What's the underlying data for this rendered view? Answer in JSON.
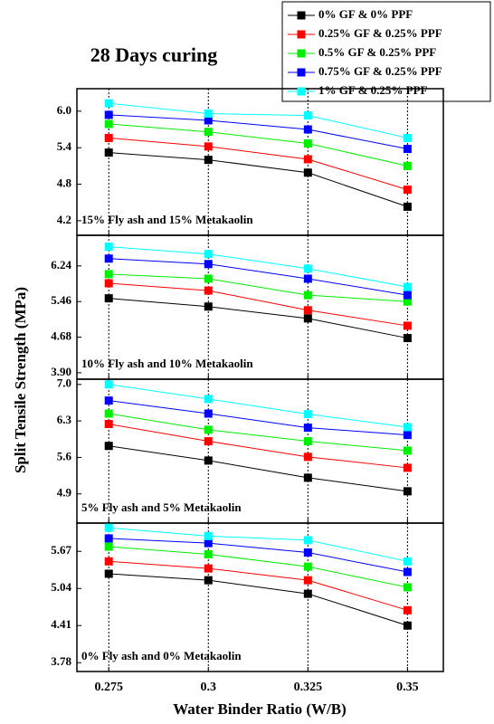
{
  "chart_data": [
    {
      "type": "line",
      "title": "28 Days curing",
      "ylabel": "Split Tensile Strength (MPa)",
      "annotation": "15% Fly ash and 15% Metakaolin",
      "x": [
        0.275,
        0.3,
        0.325,
        0.35
      ],
      "xlim": [
        0.267,
        0.359
      ],
      "xticks": [
        0.275,
        0.3,
        0.325,
        0.35
      ],
      "grid": true,
      "ylim": [
        3.96,
        6.37
      ],
      "yticks": [
        {
          "value": 6,
          "label": "6.0"
        },
        5.4,
        4.8,
        4.2
      ],
      "series": [
        {
          "name": "0% GF & 0% PPF",
          "color": "#000000",
          "values": [
            5.32,
            5.2,
            4.99,
            4.43
          ]
        },
        {
          "name": "0.25% GF & 0.25% PPF",
          "color": "#ff0000",
          "values": [
            5.56,
            5.42,
            5.21,
            4.71
          ]
        },
        {
          "name": "0.5% GF & 0.25% PPF",
          "color": "#00ee00",
          "values": [
            5.79,
            5.66,
            5.47,
            5.1
          ]
        },
        {
          "name": "0.75% GF & 0.25% PPF",
          "color": "#0000ff",
          "values": [
            5.94,
            5.85,
            5.7,
            5.38
          ]
        },
        {
          "name": "1% GF & 0.25% PPF",
          "color": "#00ffff",
          "values": [
            6.13,
            5.96,
            5.93,
            5.56
          ]
        }
      ]
    },
    {
      "type": "line",
      "annotation": "10% Fly ash and 10% Metakaolin",
      "x": [
        0.275,
        0.3,
        0.325,
        0.35
      ],
      "xlim": [
        0.267,
        0.359
      ],
      "xticks": [
        0.275,
        0.3,
        0.325,
        0.35
      ],
      "grid": true,
      "ylim": [
        3.76,
        6.91
      ],
      "yticks": [
        6.24,
        5.46,
        4.68,
        {
          "value": 3.9,
          "label": "3.90"
        }
      ],
      "series": [
        {
          "color": "#000000",
          "values": [
            5.53,
            5.35,
            5.09,
            4.66
          ]
        },
        {
          "color": "#ff0000",
          "values": [
            5.86,
            5.7,
            5.27,
            4.93
          ]
        },
        {
          "color": "#00ee00",
          "values": [
            6.06,
            5.96,
            5.6,
            5.46
          ]
        },
        {
          "color": "#0000ff",
          "values": [
            6.4,
            6.28,
            5.96,
            5.6
          ]
        },
        {
          "color": "#00ffff",
          "values": [
            6.66,
            6.5,
            6.18,
            5.78
          ]
        }
      ]
    },
    {
      "type": "line",
      "annotation": "5% Fly ash and 5% Metakaolin",
      "x": [
        0.275,
        0.3,
        0.325,
        0.35
      ],
      "xlim": [
        0.267,
        0.359
      ],
      "xticks": [
        0.275,
        0.3,
        0.325,
        0.35
      ],
      "grid": true,
      "ylim": [
        4.34,
        7.1
      ],
      "yticks": [
        {
          "value": 7,
          "label": "7.0"
        },
        6.3,
        5.6,
        4.9
      ],
      "series": [
        {
          "color": "#000000",
          "values": [
            5.82,
            5.54,
            5.21,
            4.95
          ]
        },
        {
          "color": "#ff0000",
          "values": [
            6.24,
            5.91,
            5.61,
            5.4
          ]
        },
        {
          "color": "#00ee00",
          "values": [
            6.44,
            6.13,
            5.91,
            5.73
          ]
        },
        {
          "color": "#0000ff",
          "values": [
            6.69,
            6.44,
            6.17,
            6.03
          ]
        },
        {
          "color": "#00ffff",
          "values": [
            7.0,
            6.72,
            6.43,
            6.18
          ]
        }
      ]
    },
    {
      "type": "line",
      "annotation": "0% Fly ash and 0% Metakaolin",
      "xlabel": "Water Binder Ratio (W/B)",
      "x": [
        0.275,
        0.3,
        0.325,
        0.35
      ],
      "xlim": [
        0.267,
        0.359
      ],
      "xticks": [
        0.275,
        0.3,
        0.325,
        0.35
      ],
      "grid": true,
      "ylim": [
        3.63,
        6.15
      ],
      "yticks": [
        5.67,
        5.04,
        4.41,
        3.78
      ],
      "series": [
        {
          "color": "#000000",
          "values": [
            5.29,
            5.18,
            4.95,
            4.41
          ]
        },
        {
          "color": "#ff0000",
          "values": [
            5.5,
            5.38,
            5.18,
            4.67
          ]
        },
        {
          "color": "#00ee00",
          "values": [
            5.75,
            5.62,
            5.41,
            5.06
          ]
        },
        {
          "color": "#0000ff",
          "values": [
            5.89,
            5.81,
            5.65,
            5.32
          ]
        },
        {
          "color": "#00ffff",
          "values": [
            6.07,
            5.93,
            5.86,
            5.5
          ]
        }
      ]
    }
  ]
}
